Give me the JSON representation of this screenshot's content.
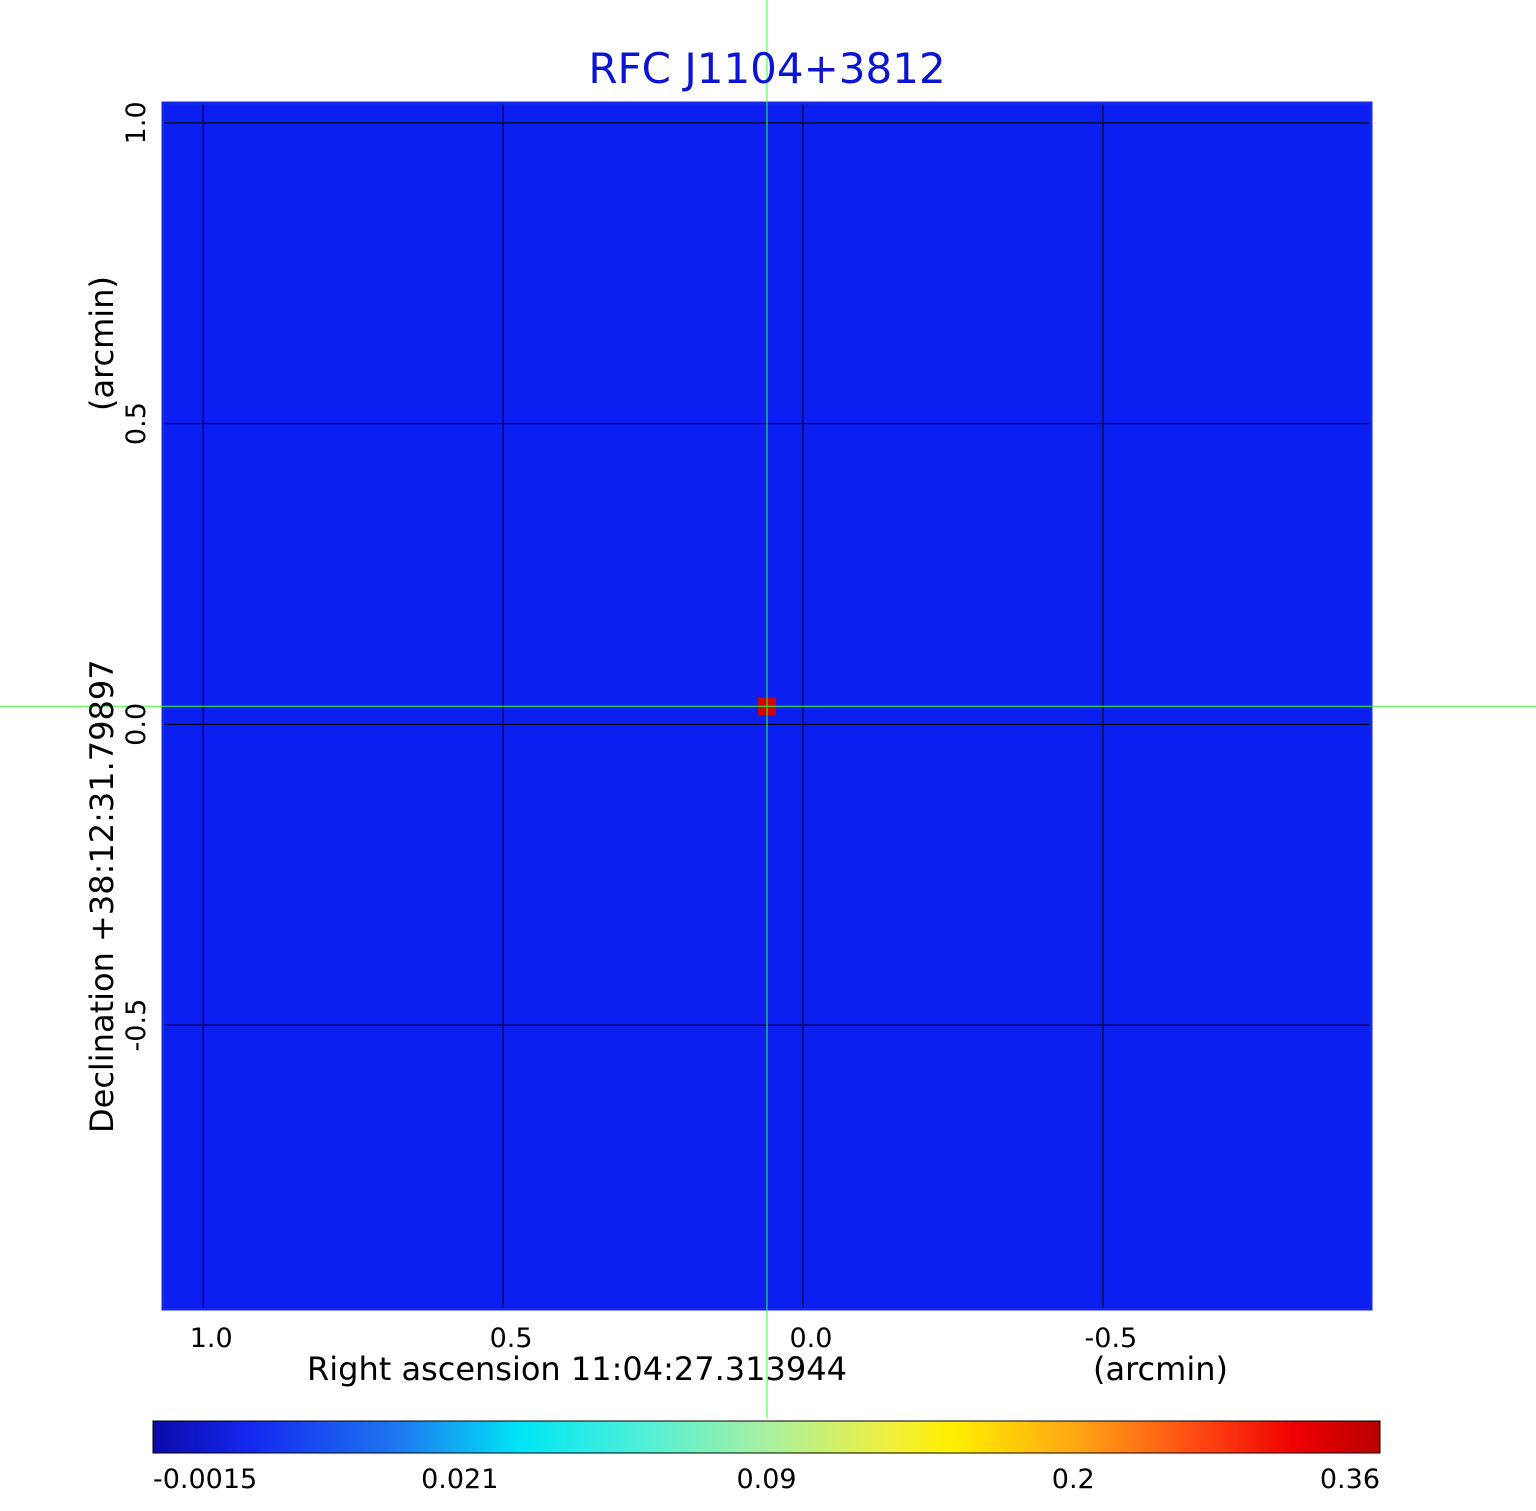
{
  "chart_data": {
    "type": "heatmap",
    "title": "RFC J1104+3812",
    "xlabel": "Right ascension  11:04:27.313944",
    "xunit": "(arcmin)",
    "ylabel": "Declination  +38:12:31.79897",
    "yunit": "(arcmin)",
    "x_ticks": [
      "1.0",
      "0.5",
      "0.0",
      "-0.5"
    ],
    "x_tick_values": [
      1.0,
      0.5,
      0.0,
      -0.5
    ],
    "y_ticks": [
      "1.0",
      "0.5",
      "0.0",
      "-0.5"
    ],
    "y_tick_values": [
      1.0,
      0.5,
      0.0,
      -0.5
    ],
    "xlim": [
      1.067,
      -0.947
    ],
    "ylim": [
      -0.972,
      1.033
    ],
    "grid": true,
    "crosshair": {
      "x": 0.06,
      "y": 0.03
    },
    "source": {
      "x": 0.06,
      "y": 0.03,
      "peak": 0.36
    },
    "colorbar": {
      "ticks": [
        "-0.0015",
        "0.021",
        "0.09",
        "0.2",
        "0.36"
      ],
      "colormap": "jet"
    },
    "colors": {
      "background_field": "#0a1ff0",
      "title": "#0a14d2",
      "frame": "#1428e6",
      "crosshair": "#33ff33",
      "grid": "#000000"
    }
  }
}
